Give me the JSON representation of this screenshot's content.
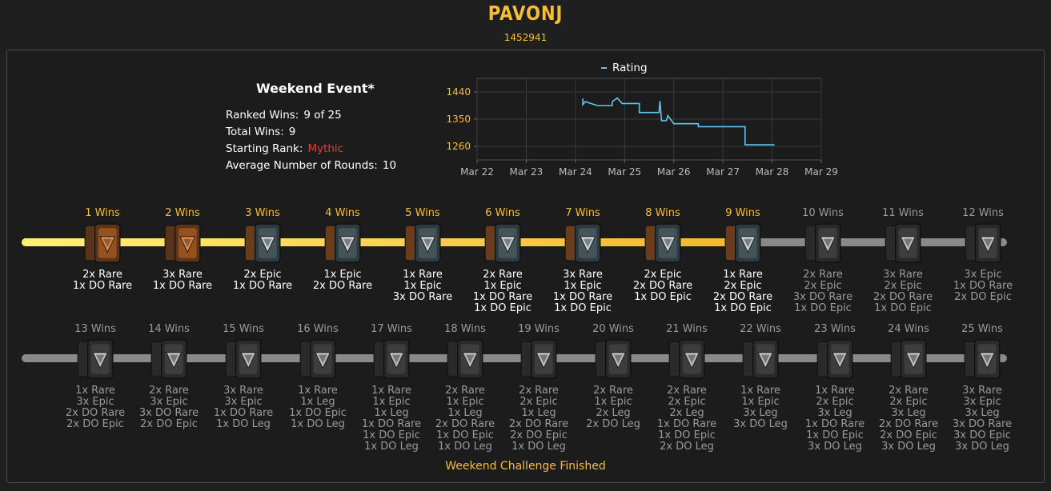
{
  "player": {
    "name": "PAVONJ",
    "id": "1452941"
  },
  "event": {
    "title": "Weekend Event*",
    "stats": [
      {
        "label": "Ranked Wins:",
        "value": "9 of 25",
        "color": "#ffffff"
      },
      {
        "label": "Total Wins:",
        "value": "9",
        "color": "#ffffff"
      },
      {
        "label": "Starting Rank:",
        "value": "Mythic",
        "color": "#e0403a"
      },
      {
        "label": "Average Number of Rounds:",
        "value": "10",
        "color": "#ffffff"
      }
    ]
  },
  "chart_data": {
    "type": "line",
    "title": "",
    "legend": {
      "position": "top",
      "entries": [
        "Rating"
      ]
    },
    "series": [
      {
        "name": "Rating",
        "color": "#5bc8ee",
        "points": [
          [
            "Mar 24.15",
            1418
          ],
          [
            "Mar 24.15",
            1398
          ],
          [
            "Mar 24.2",
            1408
          ],
          [
            "Mar 24.45",
            1395
          ],
          [
            "Mar 24.75",
            1395
          ],
          [
            "Mar 24.75",
            1408
          ],
          [
            "Mar 24.85",
            1420
          ],
          [
            "Mar 24.95",
            1402
          ],
          [
            "Mar 25.3",
            1402
          ],
          [
            "Mar 25.3",
            1372
          ],
          [
            "Mar 25.7",
            1372
          ],
          [
            "Mar 25.72",
            1410
          ],
          [
            "Mar 25.75",
            1345
          ],
          [
            "Mar 25.85",
            1345
          ],
          [
            "Mar 25.88",
            1362
          ],
          [
            "Mar 26.0",
            1335
          ],
          [
            "Mar 26.5",
            1335
          ],
          [
            "Mar 26.5",
            1325
          ],
          [
            "Mar 27.45",
            1325
          ],
          [
            "Mar 27.45",
            1265
          ],
          [
            "Mar 28.05",
            1265
          ]
        ]
      }
    ],
    "x": {
      "ticks": [
        "Mar 22",
        "Mar 23",
        "Mar 24",
        "Mar 25",
        "Mar 26",
        "Mar 27",
        "Mar 28",
        "Mar 29"
      ],
      "range": [
        22,
        29
      ]
    },
    "y": {
      "ticks": [
        1260,
        1350,
        1440
      ],
      "range": [
        1215,
        1485
      ]
    },
    "grid": true,
    "x_values_day": [
      24.15,
      24.15,
      24.2,
      24.45,
      24.75,
      24.75,
      24.85,
      24.95,
      25.3,
      25.3,
      25.7,
      25.72,
      25.75,
      25.85,
      25.88,
      26.0,
      26.5,
      26.5,
      27.45,
      27.45,
      28.05
    ]
  },
  "progress": {
    "ranked_wins": 9,
    "total": 25
  },
  "milestones": [
    {
      "label": "1 Wins",
      "rewards": [
        "2x Rare",
        "1x DO Rare"
      ],
      "pack": "rare"
    },
    {
      "label": "2 Wins",
      "rewards": [
        "3x Rare",
        "1x DO Rare"
      ],
      "pack": "rare"
    },
    {
      "label": "3 Wins",
      "rewards": [
        "2x Epic",
        "1x DO Rare"
      ],
      "pack": "mix"
    },
    {
      "label": "4 Wins",
      "rewards": [
        "1x Epic",
        "2x DO Rare"
      ],
      "pack": "mix"
    },
    {
      "label": "5 Wins",
      "rewards": [
        "1x Rare",
        "1x Epic",
        "3x DO Rare"
      ],
      "pack": "mix"
    },
    {
      "label": "6 Wins",
      "rewards": [
        "2x Rare",
        "1x Epic",
        "1x DO Rare",
        "1x DO Epic"
      ],
      "pack": "mix"
    },
    {
      "label": "7 Wins",
      "rewards": [
        "3x Rare",
        "1x Epic",
        "1x DO Rare",
        "1x DO Epic"
      ],
      "pack": "mix"
    },
    {
      "label": "8 Wins",
      "rewards": [
        "2x Epic",
        "2x DO Rare",
        "1x DO Epic"
      ],
      "pack": "mix"
    },
    {
      "label": "9 Wins",
      "rewards": [
        "1x Rare",
        "2x Epic",
        "2x DO Rare",
        "1x DO Epic"
      ],
      "pack": "mix"
    },
    {
      "label": "10 Wins",
      "rewards": [
        "2x Rare",
        "2x Epic",
        "3x DO Rare",
        "1x DO Epic"
      ],
      "pack": "epic"
    },
    {
      "label": "11 Wins",
      "rewards": [
        "3x Rare",
        "2x Epic",
        "2x DO Rare",
        "1x DO Epic"
      ],
      "pack": "epic"
    },
    {
      "label": "12 Wins",
      "rewards": [
        "3x Epic",
        "1x DO Rare",
        "2x DO Epic"
      ],
      "pack": "epic"
    },
    {
      "label": "13 Wins",
      "rewards": [
        "1x Rare",
        "3x Epic",
        "2x DO Rare",
        "2x DO Epic"
      ],
      "pack": "epic"
    },
    {
      "label": "14 Wins",
      "rewards": [
        "2x Rare",
        "3x Epic",
        "3x DO Rare",
        "2x DO Epic"
      ],
      "pack": "epic"
    },
    {
      "label": "15 Wins",
      "rewards": [
        "3x Rare",
        "3x Epic",
        "1x DO Rare",
        "1x DO Leg"
      ],
      "pack": "leg"
    },
    {
      "label": "16 Wins",
      "rewards": [
        "1x Rare",
        "1x Leg",
        "1x DO Epic",
        "1x DO Leg"
      ],
      "pack": "leg"
    },
    {
      "label": "17 Wins",
      "rewards": [
        "1x Rare",
        "1x Epic",
        "1x Leg",
        "1x DO Rare",
        "1x DO Epic",
        "1x DO Leg"
      ],
      "pack": "leg"
    },
    {
      "label": "18 Wins",
      "rewards": [
        "2x Rare",
        "1x Epic",
        "1x Leg",
        "2x DO Rare",
        "1x DO Epic",
        "1x DO Leg"
      ],
      "pack": "leg"
    },
    {
      "label": "19 Wins",
      "rewards": [
        "2x Rare",
        "2x Epic",
        "1x Leg",
        "2x DO Rare",
        "2x DO Epic",
        "1x DO Leg"
      ],
      "pack": "leg"
    },
    {
      "label": "20 Wins",
      "rewards": [
        "2x Rare",
        "1x Epic",
        "2x Leg",
        "2x DO Leg"
      ],
      "pack": "leg"
    },
    {
      "label": "21 Wins",
      "rewards": [
        "2x Rare",
        "2x Epic",
        "2x Leg",
        "1x DO Rare",
        "1x DO Epic",
        "2x DO Leg"
      ],
      "pack": "leg"
    },
    {
      "label": "22 Wins",
      "rewards": [
        "1x Rare",
        "1x Epic",
        "3x Leg",
        "3x DO Leg"
      ],
      "pack": "leg"
    },
    {
      "label": "23 Wins",
      "rewards": [
        "1x Rare",
        "2x Epic",
        "3x Leg",
        "1x DO Rare",
        "1x DO Epic",
        "3x DO Leg"
      ],
      "pack": "leg"
    },
    {
      "label": "24 Wins",
      "rewards": [
        "2x Rare",
        "2x Epic",
        "3x Leg",
        "2x DO Rare",
        "2x DO Epic",
        "3x DO Leg"
      ],
      "pack": "leg"
    },
    {
      "label": "25 Wins",
      "rewards": [
        "3x Rare",
        "3x Epic",
        "3x Leg",
        "3x DO Rare",
        "3x DO Epic",
        "3x DO Leg"
      ],
      "pack": "leg"
    }
  ],
  "colors": {
    "accent": "#f6be35",
    "track_done_start": "#fff176",
    "track_done_end": "#f5b52e",
    "track_todo": "#8a8a8a",
    "rating_line": "#5bc8ee"
  },
  "footer": {
    "text": "Weekend Challenge Finished"
  }
}
